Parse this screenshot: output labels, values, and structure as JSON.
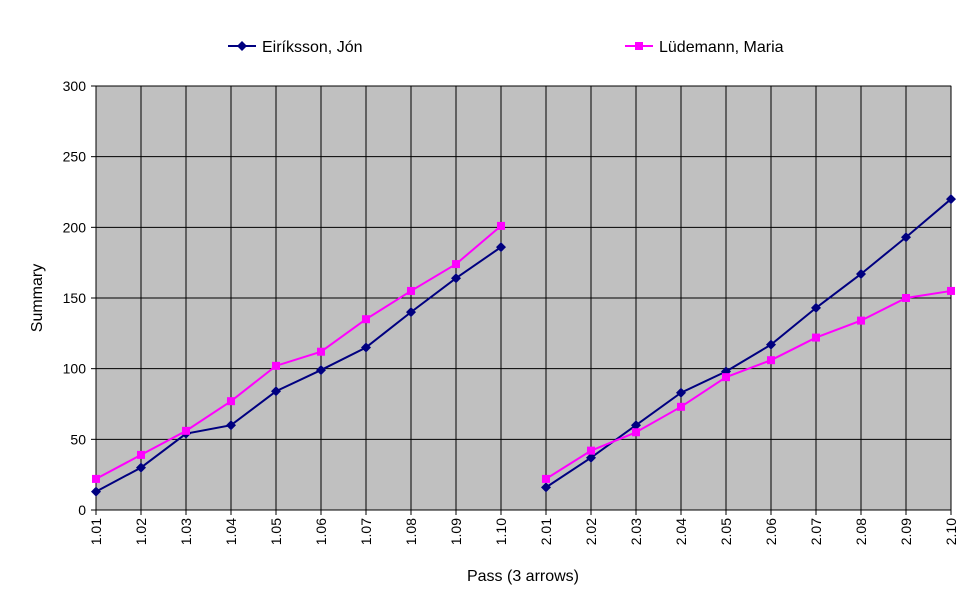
{
  "chart_data": {
    "type": "line",
    "xlabel": "Pass (3 arrows)",
    "ylabel": "Summary",
    "categories": [
      [
        "1.01",
        "1.02",
        "1.03",
        "1.04",
        "1.05",
        "1.06",
        "1.07",
        "1.08",
        "1.09",
        "1.10"
      ],
      [
        "2.01",
        "2.02",
        "2.03",
        "2.04",
        "2.05",
        "2.06",
        "2.07",
        "2.08",
        "2.09",
        "2.10"
      ]
    ],
    "series": [
      {
        "name": "Eiríksson, Jón",
        "color": "#000080",
        "marker": "diamond",
        "values": [
          [
            13,
            30,
            54,
            60,
            84,
            99,
            115,
            140,
            164,
            186
          ],
          [
            16,
            37,
            60,
            83,
            98,
            117,
            143,
            167,
            193,
            220
          ]
        ]
      },
      {
        "name": "Lüdemann, Maria",
        "color": "#ff00ff",
        "marker": "square",
        "values": [
          [
            22,
            39,
            56,
            77,
            102,
            112,
            135,
            155,
            174,
            201
          ],
          [
            22,
            42,
            55,
            73,
            94,
            106,
            122,
            134,
            150,
            155
          ]
        ]
      }
    ],
    "ylim": [
      0,
      300
    ],
    "yticks": [
      0,
      50,
      100,
      150,
      200,
      250,
      300
    ],
    "grid": true,
    "legend": "top",
    "background": "#c0c0c0"
  }
}
